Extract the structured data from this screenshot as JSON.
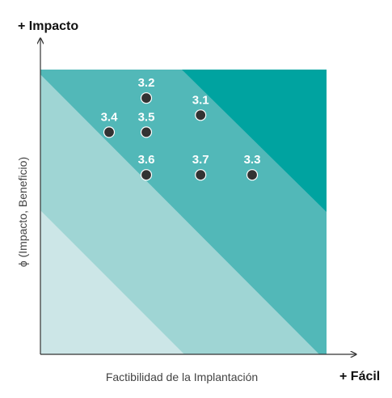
{
  "chart_data": {
    "type": "scatter",
    "xlabel": "Factibilidad de la Implantación",
    "ylabel": "ϕ (Impacto, Beneficio)",
    "x_end_label": "+ Fácil",
    "y_end_label": "+ Impacto",
    "xlim": [
      0,
      10
    ],
    "ylim": [
      0,
      10
    ],
    "grid": false,
    "legend": "none",
    "colors": {
      "zone_darkest": "#00a3a0",
      "zone_dark": "#52b8b8",
      "zone_light": "#9fd5d4",
      "zone_lightest": "#cce6e7",
      "point": "#333333",
      "label": "#ffffff",
      "axis": "#333333"
    },
    "points": [
      {
        "label": "3.2",
        "x": 3.7,
        "y": 9.0
      },
      {
        "label": "3.1",
        "x": 5.6,
        "y": 8.4
      },
      {
        "label": "3.4",
        "x": 2.4,
        "y": 7.8
      },
      {
        "label": "3.5",
        "x": 3.7,
        "y": 7.8
      },
      {
        "label": "3.6",
        "x": 3.7,
        "y": 6.3
      },
      {
        "label": "3.7",
        "x": 5.6,
        "y": 6.3
      },
      {
        "label": "3.3",
        "x": 7.4,
        "y": 6.3
      }
    ]
  }
}
